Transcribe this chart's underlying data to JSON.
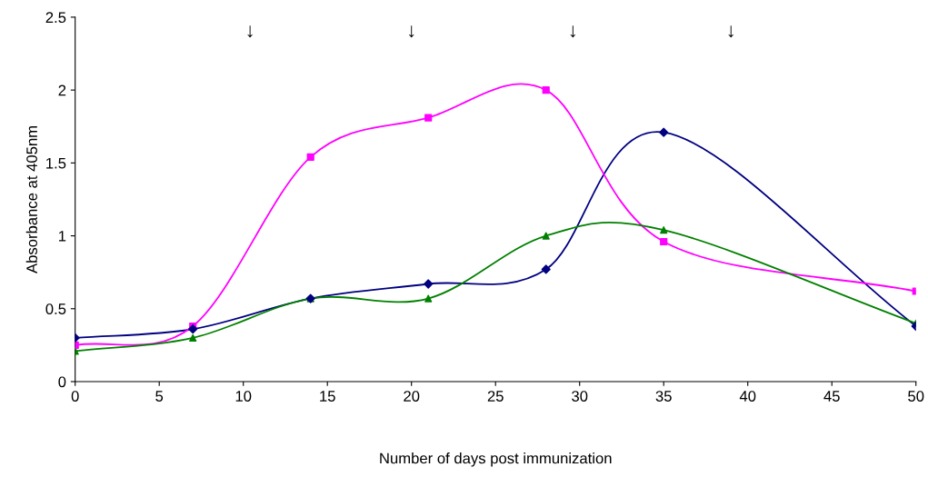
{
  "chart_data": {
    "type": "line",
    "xlabel": "Number of days post immunization",
    "ylabel": "Absorbance at 405nm",
    "x": [
      0,
      7,
      14,
      21,
      28,
      35,
      50
    ],
    "series": [
      {
        "color": "#000080",
        "marker": "diamond",
        "values": [
          0.3,
          0.36,
          0.57,
          0.67,
          0.77,
          1.71,
          0.38
        ]
      },
      {
        "color": "#ff00ff",
        "marker": "square",
        "values": [
          0.25,
          0.38,
          1.54,
          1.81,
          2.0,
          0.96,
          0.62
        ]
      },
      {
        "color": "#008000",
        "marker": "triangle",
        "values": [
          0.21,
          0.3,
          0.57,
          0.57,
          1.0,
          1.04,
          0.4
        ]
      }
    ],
    "annotations": [
      "↓",
      "↓",
      "↓",
      "↓"
    ],
    "xlim": [
      0,
      50
    ],
    "xticks": [
      0,
      5,
      10,
      15,
      20,
      25,
      30,
      35,
      40,
      45,
      50
    ],
    "ylim": [
      0,
      2.5
    ],
    "yticks": [
      0,
      0.5,
      1,
      1.5,
      2,
      2.5
    ],
    "grid": false,
    "legend": false,
    "line_style": "solid"
  }
}
